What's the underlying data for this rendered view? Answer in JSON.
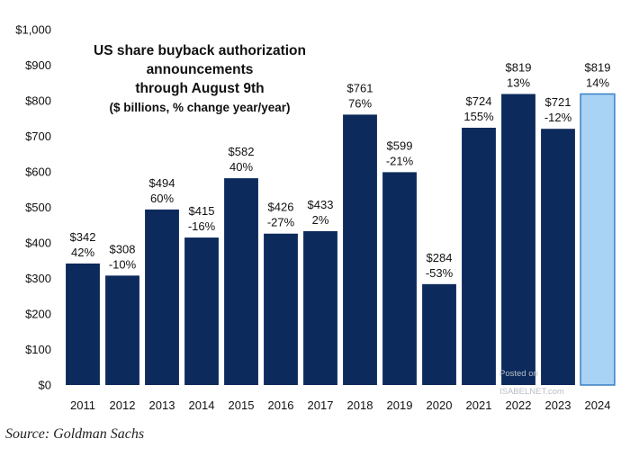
{
  "chart_data": {
    "type": "bar",
    "title": [
      "US share buyback authorization",
      "announcements",
      "through August 9th"
    ],
    "subtitle": "($ billions, % change year/year)",
    "categories": [
      "2011",
      "2012",
      "2013",
      "2014",
      "2015",
      "2016",
      "2017",
      "2018",
      "2019",
      "2020",
      "2021",
      "2022",
      "2023",
      "2024"
    ],
    "values": [
      342,
      308,
      494,
      415,
      582,
      426,
      433,
      761,
      599,
      284,
      724,
      819,
      721,
      819
    ],
    "value_labels": [
      "$342",
      "$308",
      "$494",
      "$415",
      "$582",
      "$426",
      "$433",
      "$761",
      "$599",
      "$284",
      "$724",
      "$819",
      "$721",
      "$819"
    ],
    "change_labels": [
      "42%",
      "-10%",
      "60%",
      "-16%",
      "40%",
      "-27%",
      "2%",
      "76%",
      "-21%",
      "-53%",
      "155%",
      "13%",
      "-12%",
      "14%"
    ],
    "ylim": [
      0,
      1000
    ],
    "yticks": [
      0,
      100,
      200,
      300,
      400,
      500,
      600,
      700,
      800,
      900,
      1000
    ],
    "ytick_labels": [
      "$0",
      "$100",
      "$200",
      "$300",
      "$400",
      "$500",
      "$600",
      "$700",
      "$800",
      "$900",
      "$1,000"
    ],
    "grid": false,
    "colors": {
      "bar": "#0d2a5c",
      "bar_highlight": "#a9d3f5",
      "bar_highlight_edge": "#3a7fc4"
    },
    "highlight_index": 13
  },
  "watermark": {
    "line1": "Posted on",
    "line2": "ISABELNET.com"
  },
  "source": "Source: Goldman Sachs"
}
